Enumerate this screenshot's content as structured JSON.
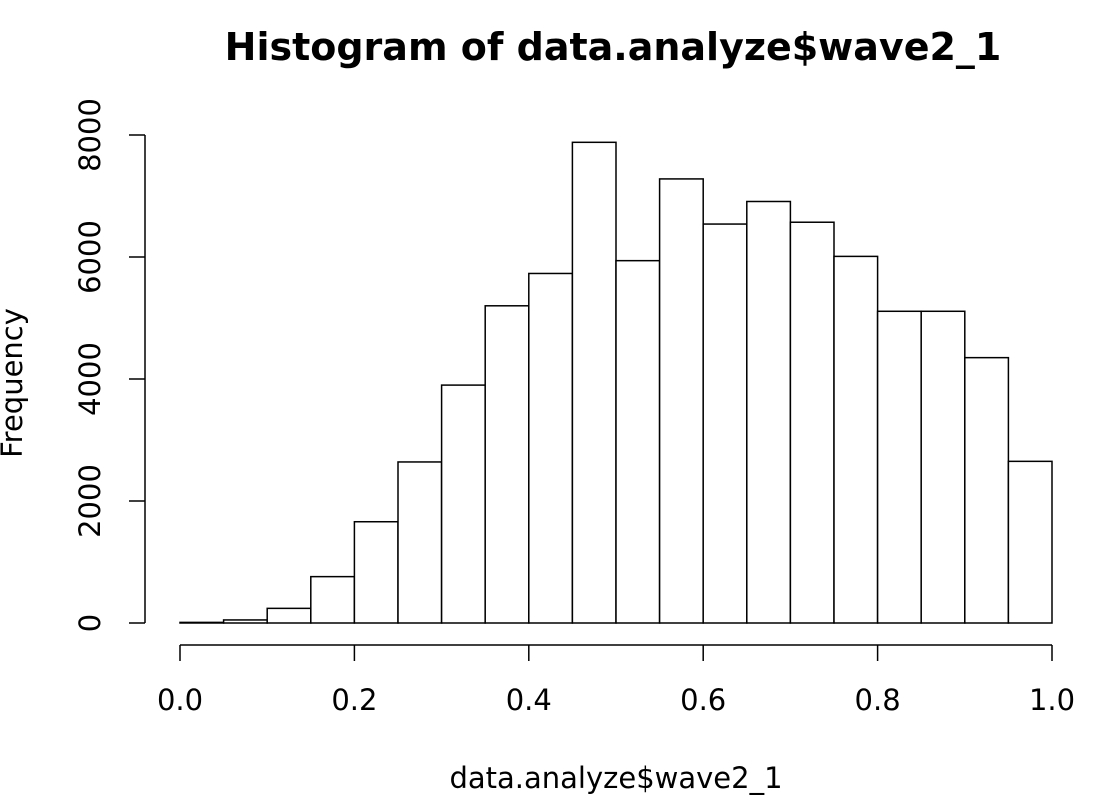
{
  "chart_data": {
    "type": "bar",
    "title": "Histogram of data.analyze$wave2_1",
    "xlabel": "data.analyze$wave2_1",
    "ylabel": "Frequency",
    "xlim": [
      0.0,
      1.0
    ],
    "ylim": [
      0,
      8000
    ],
    "bin_edges": [
      0.0,
      0.05,
      0.1,
      0.15,
      0.2,
      0.25,
      0.3,
      0.35,
      0.4,
      0.45,
      0.5,
      0.55,
      0.6,
      0.65,
      0.7,
      0.75,
      0.8,
      0.85,
      0.9,
      0.95,
      1.0
    ],
    "values": [
      10,
      50,
      240,
      760,
      1660,
      2640,
      3900,
      5200,
      5730,
      7880,
      5940,
      7280,
      6540,
      6910,
      6570,
      6010,
      5110,
      5110,
      4350,
      2650
    ],
    "x_ticks": [
      {
        "value": 0.0,
        "label": "0.0"
      },
      {
        "value": 0.2,
        "label": "0.2"
      },
      {
        "value": 0.4,
        "label": "0.4"
      },
      {
        "value": 0.6,
        "label": "0.6"
      },
      {
        "value": 0.8,
        "label": "0.8"
      },
      {
        "value": 1.0,
        "label": "1.0"
      }
    ],
    "y_ticks": [
      {
        "value": 0,
        "label": "0"
      },
      {
        "value": 2000,
        "label": "2000"
      },
      {
        "value": 4000,
        "label": "4000"
      },
      {
        "value": 6000,
        "label": "6000"
      },
      {
        "value": 8000,
        "label": "8000"
      }
    ],
    "grid": false,
    "colors": {
      "bar_fill": "#ffffff",
      "bar_stroke": "#000000"
    }
  }
}
